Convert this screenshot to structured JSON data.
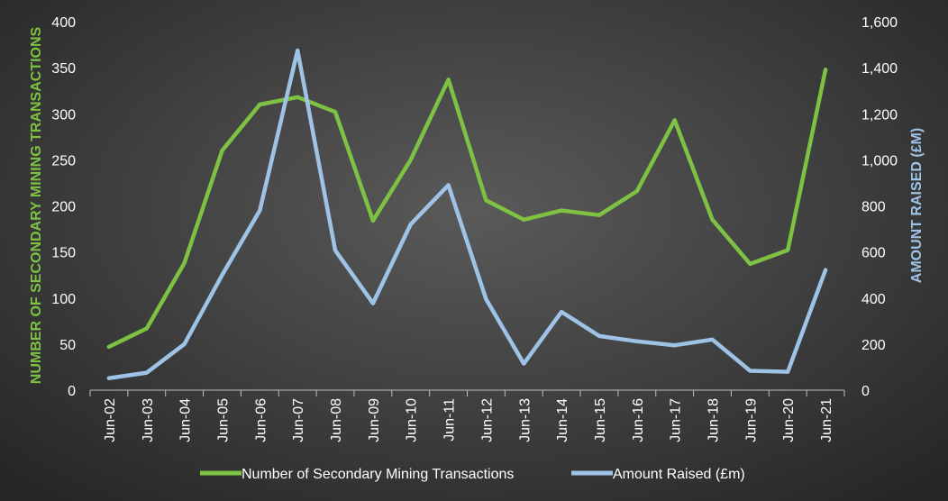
{
  "chart_data": {
    "type": "line",
    "categories": [
      "Jun-02",
      "Jun-03",
      "Jun-04",
      "Jun-05",
      "Jun-06",
      "Jun-07",
      "Jun-08",
      "Jun-09",
      "Jun-10",
      "Jun-11",
      "Jun-12",
      "Jun-13",
      "Jun-14",
      "Jun-15",
      "Jun-16",
      "Jun-17",
      "Jun-18",
      "Jun-19",
      "Jun-20",
      "Jun-21"
    ],
    "series": [
      {
        "name": "Number of Secondary Mining Transactions",
        "axis": "left",
        "color": "#7dc242",
        "values": [
          47,
          67,
          138,
          260,
          310,
          318,
          302,
          184,
          250,
          337,
          206,
          185,
          195,
          190,
          216,
          293,
          185,
          137,
          152,
          348
        ]
      },
      {
        "name": "Amount Raised (£m)",
        "axis": "right",
        "color": "#9ec3e6",
        "values": [
          52,
          76,
          200,
          500,
          780,
          1475,
          607,
          377,
          720,
          890,
          395,
          115,
          340,
          235,
          212,
          195,
          220,
          84,
          80,
          522
        ]
      }
    ],
    "y_left": {
      "label": "NUMBER OF SECONDARY MINING TRANSACTIONS",
      "range": [
        0,
        400
      ],
      "ticks": [
        "0",
        "50",
        "100",
        "150",
        "200",
        "250",
        "300",
        "350",
        "400"
      ],
      "tick_values": [
        0,
        50,
        100,
        150,
        200,
        250,
        300,
        350,
        400
      ]
    },
    "y_right": {
      "label": "AMOUNT RAISED (£M)",
      "range": [
        0,
        1600
      ],
      "ticks": [
        "0",
        "200",
        "400",
        "600",
        "800",
        "1,000",
        "1,200",
        "1,400",
        "1,600"
      ],
      "tick_values": [
        0,
        200,
        400,
        600,
        800,
        1000,
        1200,
        1400,
        1600
      ]
    },
    "grid": false,
    "legend_position": "bottom"
  }
}
